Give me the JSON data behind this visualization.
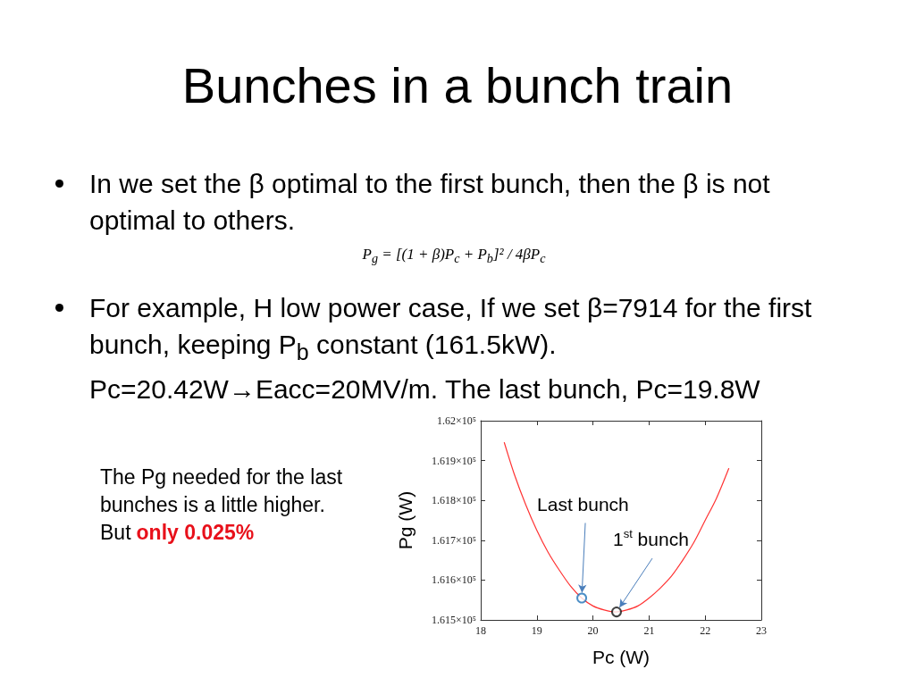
{
  "chart_data": {
    "type": "line",
    "title": "Bunches in a bunch train",
    "xlabel": "Pc (W)",
    "ylabel": "Pg (W)",
    "xlim": [
      18,
      23
    ],
    "xticks": [
      18,
      19,
      20,
      21,
      22,
      23
    ],
    "ylim": [
      161500,
      162000
    ],
    "yticks": [
      {
        "value": 161500,
        "label": "1.615×10⁵"
      },
      {
        "value": 161600,
        "label": "1.616×10⁵"
      },
      {
        "value": 161700,
        "label": "1.617×10⁵"
      },
      {
        "value": 161800,
        "label": "1.618×10⁵"
      },
      {
        "value": 161900,
        "label": "1.619×10⁵"
      },
      {
        "value": 162000,
        "label": "1.62×10⁵"
      }
    ],
    "series": [
      {
        "color": "#ff3333",
        "marker": "none",
        "x": [
          18.42,
          18.6,
          18.8,
          19.0,
          19.2,
          19.4,
          19.6,
          19.8,
          20.0,
          20.2,
          20.4,
          20.6,
          20.8,
          21.0,
          21.2,
          21.4,
          21.6,
          21.8,
          22.0,
          22.2,
          22.42
        ],
        "values": [
          161945,
          161865,
          161790,
          161725,
          161670,
          161625,
          161585,
          161555,
          161535,
          161525,
          161520,
          161525,
          161535,
          161555,
          161580,
          161610,
          161650,
          161695,
          161750,
          161805,
          161880
        ]
      },
      {
        "type": "scatter",
        "color": "#1f72b8",
        "marker": "circle",
        "x": [
          19.8
        ],
        "values": [
          161555
        ]
      },
      {
        "type": "scatter",
        "color": "#111111",
        "marker": "circle",
        "x": [
          20.42
        ],
        "values": [
          161520
        ]
      }
    ],
    "annotations": [
      "In we set the β optimal to the first bunch, then the β is not optimal to others.",
      "P$_{g}$ = [(1 + β)P$_{c}$ + P$_{b}$]² / 4βP$_{c}$",
      "For example, H low power case, If we set β=7914 for the first bunch, keeping P$_{b}$ constant (161.5kW).",
      "Pc=20.42W→Eacc=20MV/m. The last bunch, Pc=19.8W",
      "The Pg needed for the last bunches is a little higher.",
      "But",
      "only 0.025%",
      {
        "text": "Last bunch",
        "x": 19.8,
        "y": 161555
      },
      {
        "text": "1$^{st}$ bunch",
        "x": 20.42,
        "y": 161520
      }
    ]
  }
}
